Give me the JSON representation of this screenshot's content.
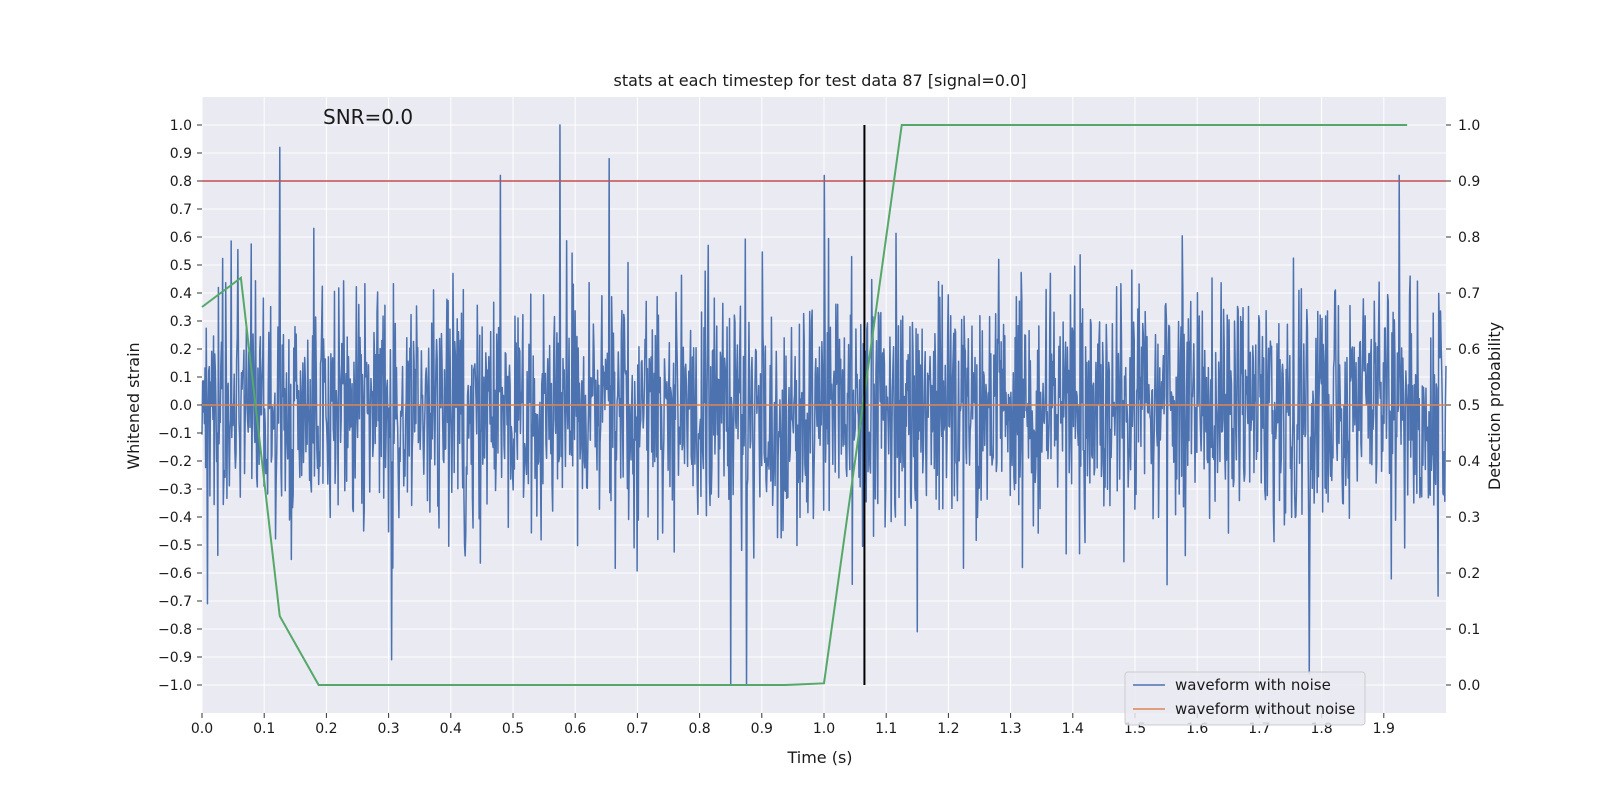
{
  "chart_data": {
    "type": "line",
    "title": "stats at each timestep for test data 87 [signal=0.0]",
    "annotation": "SNR=0.0",
    "xlabel": "Time (s)",
    "ylabel": "Whitened strain",
    "y2label": "Detection probability",
    "xlim": [
      0.0,
      2.0
    ],
    "ylim": [
      -1.1,
      1.1
    ],
    "y2lim": [
      -0.05,
      1.05
    ],
    "x_ticks": [
      "0.0",
      "0.1",
      "0.2",
      "0.3",
      "0.4",
      "0.5",
      "0.6",
      "0.7",
      "0.8",
      "0.9",
      "1.0",
      "1.1",
      "1.2",
      "1.3",
      "1.4",
      "1.5",
      "1.6",
      "1.7",
      "1.8",
      "1.9"
    ],
    "y_ticks": [
      "1.0",
      "0.9",
      "0.8",
      "0.7",
      "0.6",
      "0.5",
      "0.4",
      "0.3",
      "0.2",
      "0.1",
      "0.0",
      "−0.1",
      "−0.2",
      "−0.3",
      "−0.4",
      "−0.5",
      "−0.6",
      "−0.7",
      "−0.8",
      "−0.9",
      "−1.0"
    ],
    "y2_ticks": [
      "1.0",
      "0.9",
      "0.8",
      "0.7",
      "0.6",
      "0.5",
      "0.4",
      "0.3",
      "0.2",
      "0.1",
      "0.0"
    ],
    "grid": true,
    "threshold_line": {
      "y": 0.8,
      "color": "#c44e52"
    },
    "vertical_marker": {
      "x": 1.065,
      "ymin": -1.0,
      "ymax": 1.0,
      "color": "#000000"
    },
    "noise_series": {
      "name": "waveform with noise",
      "color": "#4c72b0",
      "num_points": 2048,
      "seed": 87,
      "amplitude": 0.22,
      "spikes": [
        [
          0.125,
          0.92
        ],
        [
          0.48,
          0.82
        ],
        [
          0.575,
          1.0
        ],
        [
          0.655,
          0.88
        ],
        [
          1.0,
          0.82
        ],
        [
          1.925,
          0.82
        ],
        [
          0.305,
          -0.91
        ],
        [
          0.85,
          -1.0
        ],
        [
          0.875,
          -1.0
        ],
        [
          1.78,
          -0.96
        ],
        [
          0.009,
          -0.71
        ],
        [
          1.15,
          -0.81
        ]
      ]
    },
    "clean_series": {
      "name": "waveform without noise",
      "color": "#dd8452",
      "value": 0.0
    },
    "probability_series": {
      "name": "Detection probability",
      "color": "#55a868",
      "x": [
        0.0,
        0.0625,
        0.125,
        0.1875,
        0.25,
        0.3125,
        0.375,
        0.4375,
        0.5,
        0.5625,
        0.625,
        0.6875,
        0.75,
        0.8125,
        0.875,
        0.9375,
        1.0,
        1.0625,
        1.125,
        1.1875,
        1.25,
        1.3125,
        1.375,
        1.4375,
        1.5,
        1.5625,
        1.625,
        1.6875,
        1.75,
        1.8125,
        1.875,
        1.9375
      ],
      "values": [
        0.675,
        0.727,
        0.123,
        0.0,
        0.0,
        0.0,
        0.0,
        0.0,
        0.0,
        0.0,
        0.0,
        0.0,
        0.0,
        0.0,
        0.0,
        0.0,
        0.003,
        0.5,
        1.0,
        1.0,
        1.0,
        1.0,
        1.0,
        1.0,
        1.0,
        1.0,
        1.0,
        1.0,
        1.0,
        1.0,
        1.0,
        1.0
      ]
    },
    "legend": {
      "placement": "lower-right",
      "entries": [
        "waveform with noise",
        "waveform without noise"
      ]
    }
  }
}
